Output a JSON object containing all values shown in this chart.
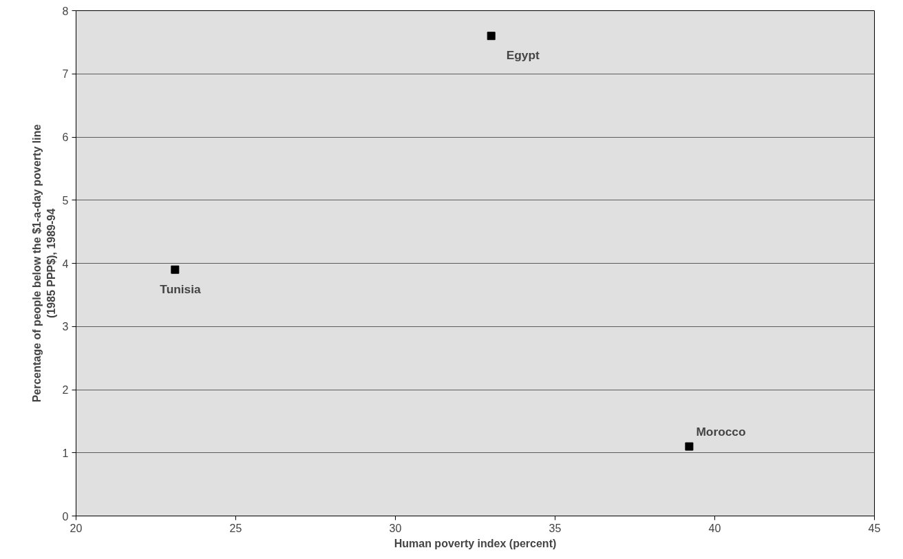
{
  "chart_data": {
    "type": "scatter",
    "xlabel": "Human poverty index (percent)",
    "ylabel": "Percentage of people below the $1-a-day poverty line (1985 PPP$), 1989-94",
    "x": [
      33.0,
      23.1,
      39.2
    ],
    "values": [
      7.6,
      3.9,
      1.1
    ],
    "color": "#000000",
    "marker": "square",
    "annotations": [
      {
        "text": "Egypt",
        "x": 33.0,
        "y": 7.6
      },
      {
        "text": "Tunisia",
        "x": 23.1,
        "y": 3.9
      },
      {
        "text": "Morocco",
        "x": 39.2,
        "y": 1.1
      }
    ],
    "xlim": [
      20,
      45
    ],
    "xticks": [
      20,
      25,
      30,
      35,
      40,
      45
    ],
    "ylim": [
      0,
      8
    ],
    "yticks": [
      0,
      1,
      2,
      3,
      4,
      5,
      6,
      7,
      8
    ],
    "grid": "y"
  }
}
